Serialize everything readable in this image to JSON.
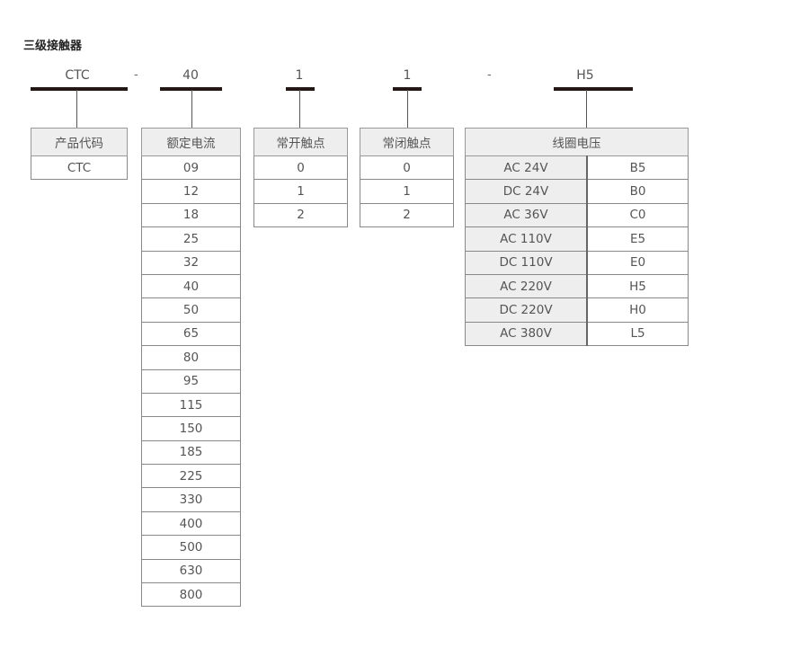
{
  "title": "三级接触器",
  "code_parts": [
    "CTC",
    "40",
    "1",
    "1",
    "H5"
  ],
  "separators": [
    "-",
    "-"
  ],
  "tables": [
    {
      "header": "产品代码",
      "rows": [
        "CTC"
      ]
    },
    {
      "header": "额定电流",
      "rows": [
        "09",
        "12",
        "18",
        "25",
        "32",
        "40",
        "50",
        "65",
        "80",
        "95",
        "115",
        "150",
        "185",
        "225",
        "330",
        "400",
        "500",
        "630",
        "800"
      ]
    },
    {
      "header": "常开触点",
      "rows": [
        "0",
        "1",
        "2"
      ]
    },
    {
      "header": "常闭触点",
      "rows": [
        "0",
        "1",
        "2"
      ]
    }
  ],
  "coil": {
    "header": "线圈电压",
    "rows": [
      [
        "AC 24V",
        "B5"
      ],
      [
        "DC 24V",
        "B0"
      ],
      [
        "AC 36V",
        "C0"
      ],
      [
        "AC 110V",
        "E5"
      ],
      [
        "DC 110V",
        "E0"
      ],
      [
        "AC 220V",
        "H5"
      ],
      [
        "DC 220V",
        "H0"
      ],
      [
        "AC 380V",
        "L5"
      ]
    ]
  }
}
